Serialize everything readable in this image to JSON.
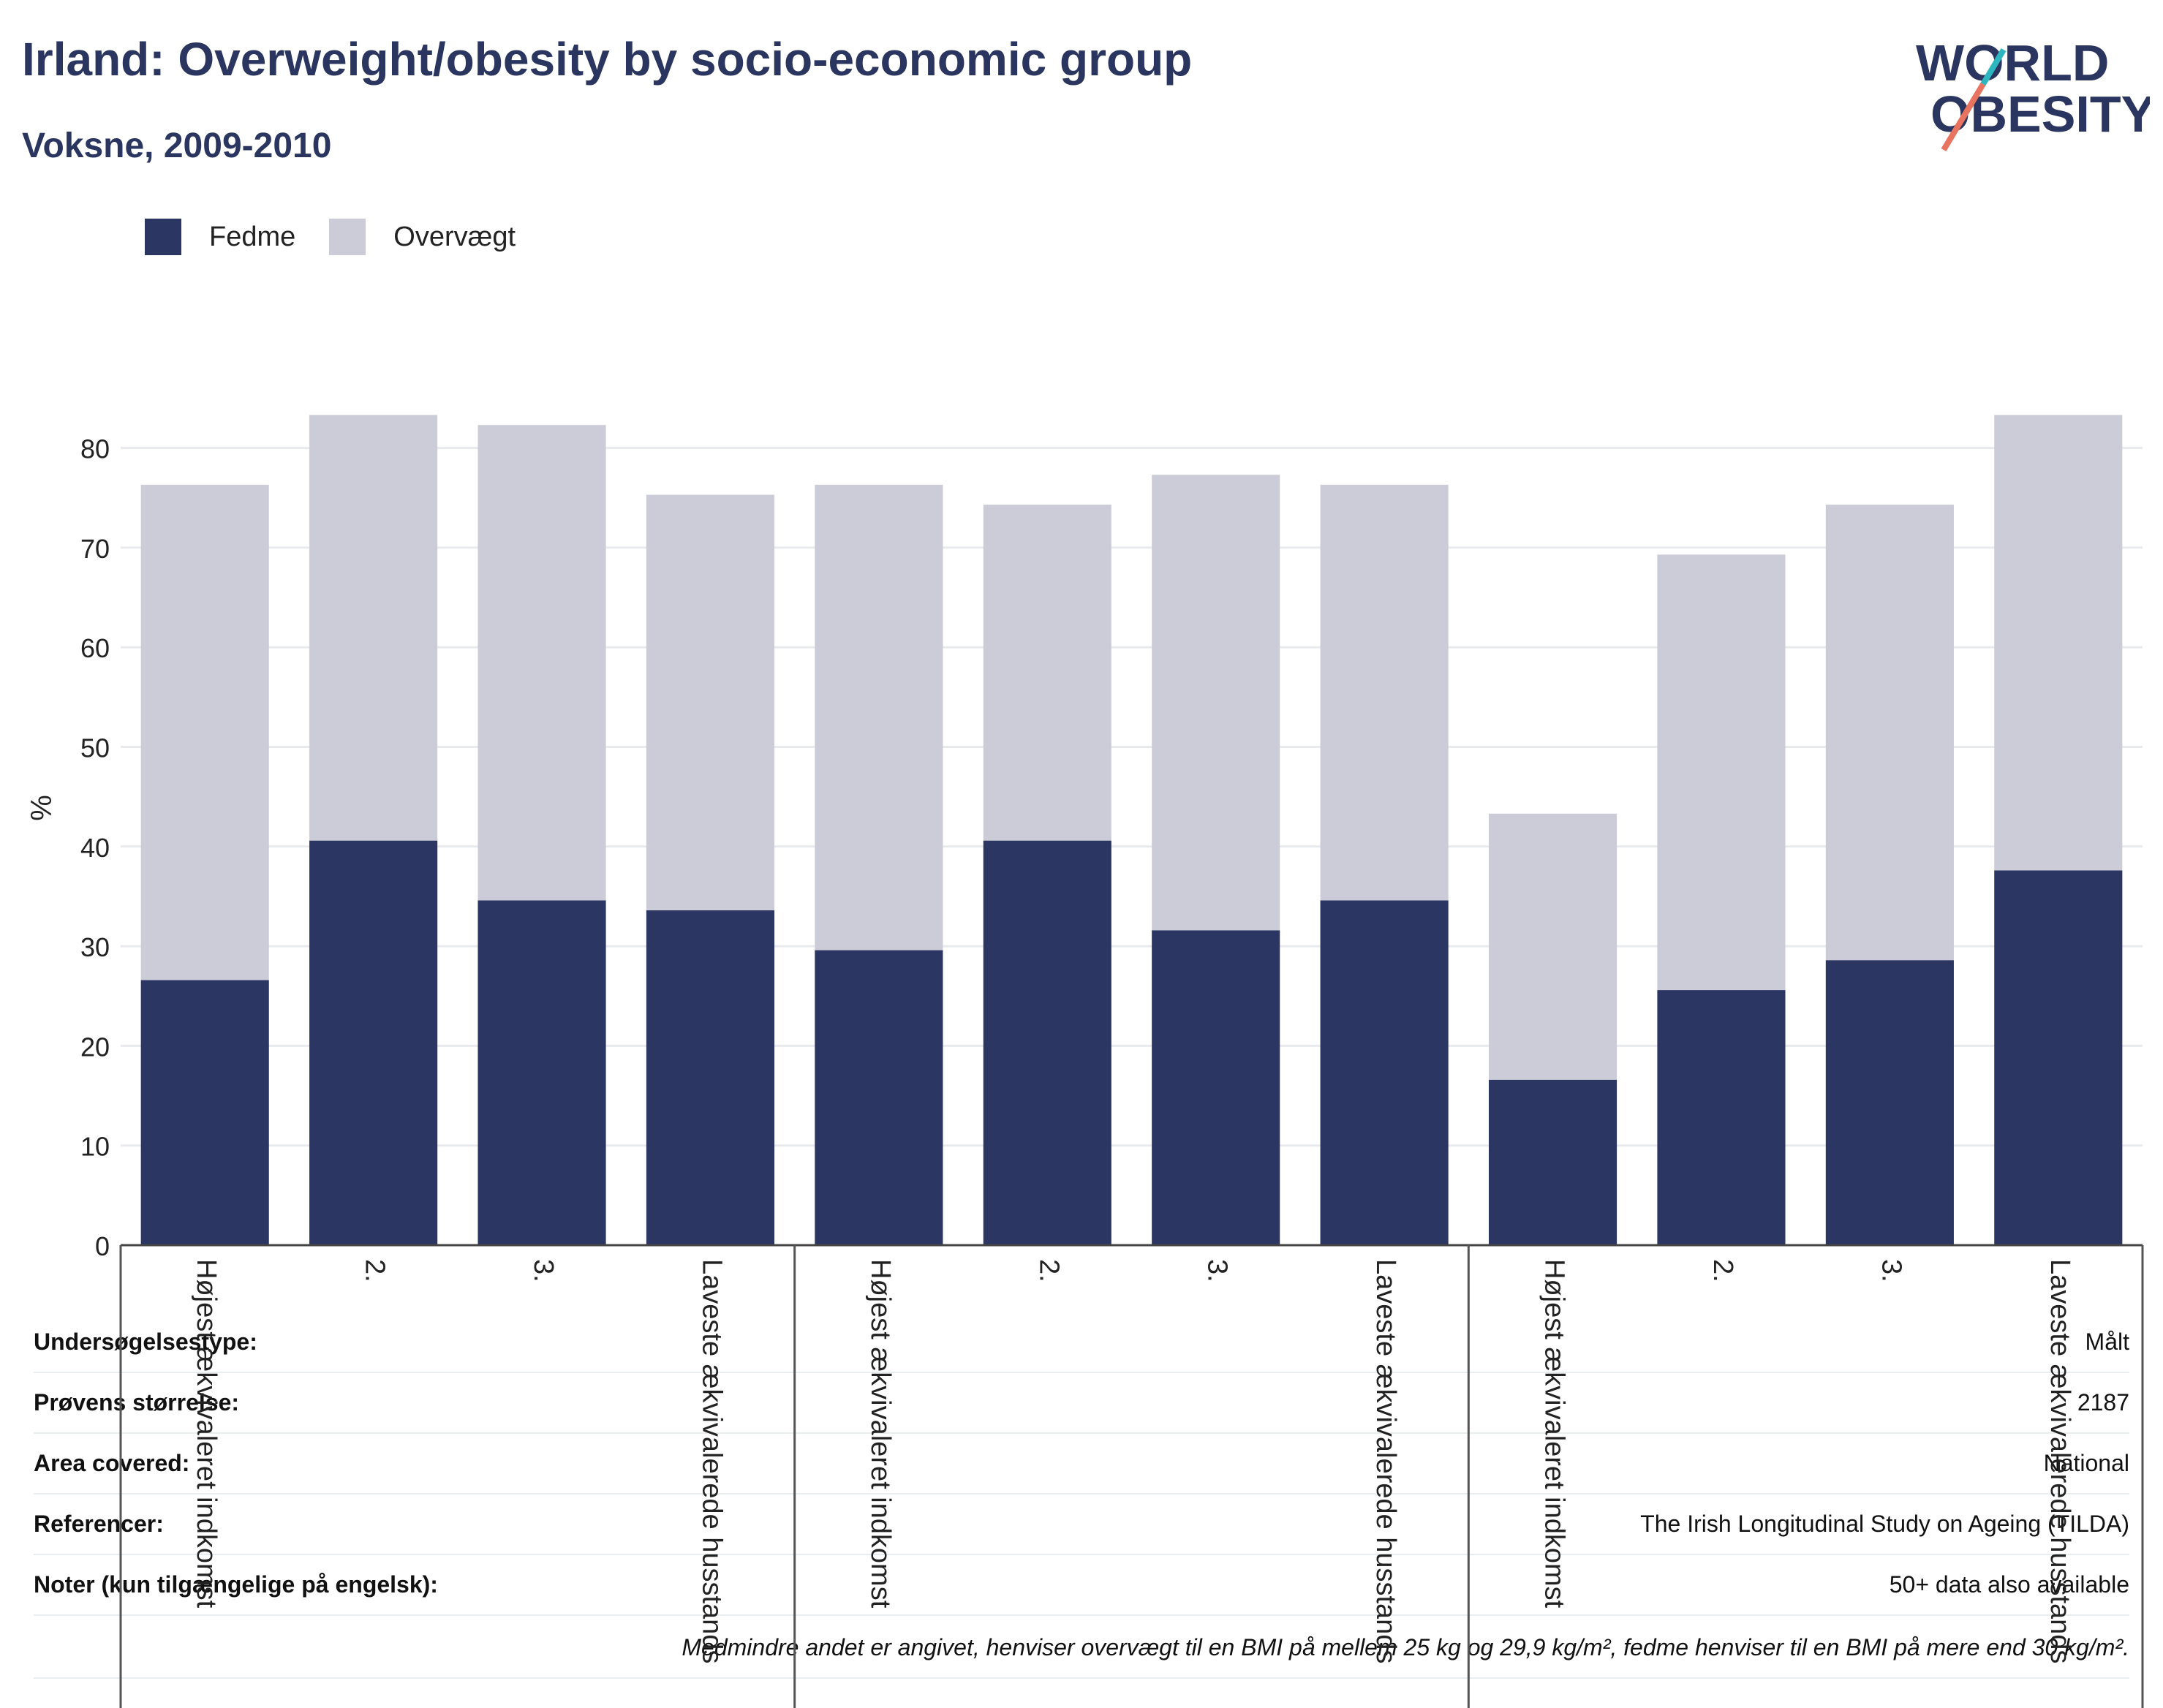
{
  "header": {
    "title": "Irland: Overweight/obesity by socio-economic group",
    "subtitle": "Voksne, 2009-2010"
  },
  "logo": {
    "line1": "WORLD",
    "line2": "OBESITY"
  },
  "legend": [
    {
      "label": "Fedme",
      "color": "#2b3663"
    },
    {
      "label": "Overvægt",
      "color": "#cbccd8"
    }
  ],
  "chart_data": {
    "type": "bar",
    "stacked": true,
    "ylabel": "%",
    "ylim": [
      0,
      83
    ],
    "yticks": [
      0,
      10,
      20,
      30,
      40,
      50,
      60,
      70,
      80
    ],
    "grid": true,
    "legend_position": "top-left",
    "categories": [
      "Højest ækvivaleret indkomst",
      "2.",
      "3.",
      "Laveste ækvivalerede husstands",
      "Højest ækvivaleret indkomst",
      "2.",
      "3.",
      "Laveste ækvivalerede husstands",
      "Højest ækvivaleret indkomst",
      "2.",
      "3.",
      "Laveste ækvivalerede husstands"
    ],
    "series": [
      {
        "name": "Fedme",
        "color": "#2b3663",
        "values": [
          26.6,
          40.6,
          34.6,
          33.6,
          29.6,
          40.6,
          31.6,
          34.6,
          16.6,
          25.6,
          28.6,
          37.6
        ]
      },
      {
        "name": "Overvægt",
        "color": "#cbccd8",
        "values": [
          49.7,
          42.7,
          47.7,
          41.7,
          46.7,
          33.7,
          45.7,
          41.7,
          26.7,
          43.7,
          45.7,
          45.7
        ]
      }
    ],
    "group_separators_after": [
      3,
      7
    ]
  },
  "info_table": [
    {
      "label": "Undersøgelsestype:",
      "value": "Målt"
    },
    {
      "label": "Prøvens størrelse:",
      "value": "2187"
    },
    {
      "label": "Area covered:",
      "value": "National"
    },
    {
      "label": "Referencer:",
      "value": "The Irish Longitudinal Study on Ageing (TILDA)"
    },
    {
      "label": "Noter (kun tilgængelige på engelsk):",
      "value": "50+ data also available"
    }
  ],
  "footnote": "Medmindre andet er angivet, henviser overvægt til en BMI på mellem 25 kg og 29,9 kg/m², fedme henviser til en BMI på mere end 30 kg/m²."
}
